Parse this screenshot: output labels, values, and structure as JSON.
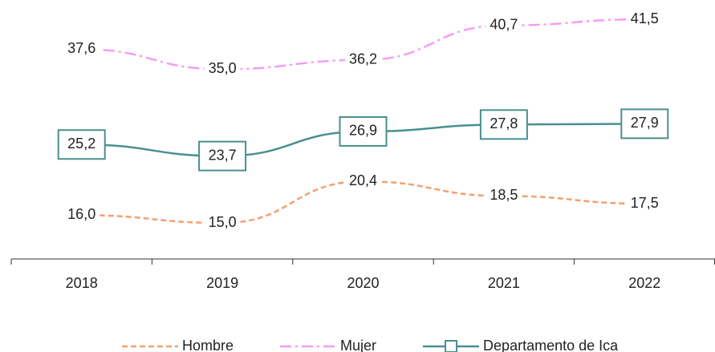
{
  "chart_data": {
    "type": "line",
    "categories": [
      "2018",
      "2019",
      "2020",
      "2021",
      "2022"
    ],
    "series": [
      {
        "name": "Hombre",
        "color": "#f4a06f",
        "style": "dashed",
        "values": [
          16.0,
          15.0,
          20.4,
          18.5,
          17.5
        ],
        "value_labels": [
          "16,0",
          "15,0",
          "20,4",
          "18,5",
          "17,5"
        ]
      },
      {
        "name": "Mujer",
        "color": "#f59cf5",
        "style": "dashdot",
        "values": [
          37.6,
          35.0,
          36.2,
          40.7,
          41.5
        ],
        "value_labels": [
          "37,6",
          "35,0",
          "36,2",
          "40,7",
          "41,5"
        ]
      },
      {
        "name": "Departamento de Ica",
        "color": "#4a8f8f",
        "style": "solid",
        "marker": "square",
        "values": [
          25.2,
          23.7,
          26.9,
          27.8,
          27.9
        ],
        "value_labels": [
          "25,2",
          "23,7",
          "26,9",
          "27,8",
          "27,9"
        ]
      }
    ],
    "legend": "bottom"
  }
}
